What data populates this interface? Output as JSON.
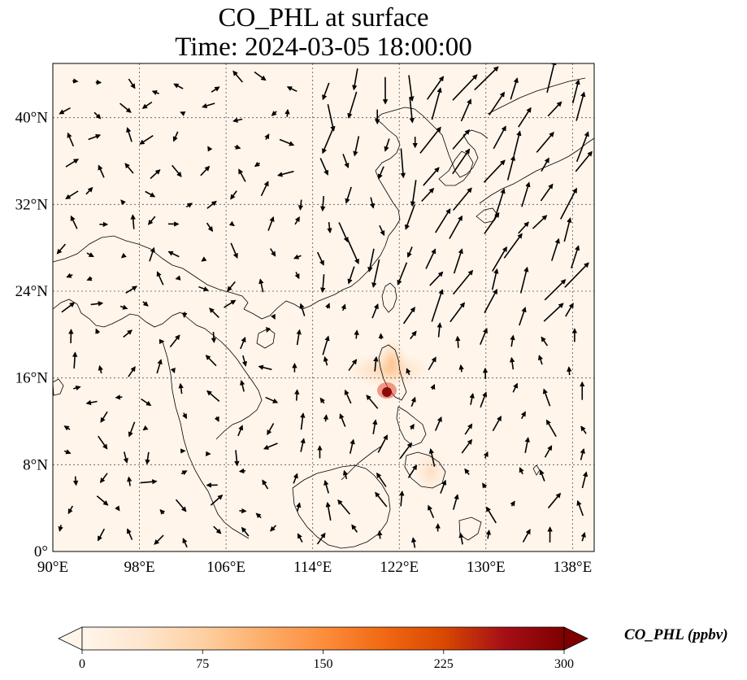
{
  "title": {
    "line1": "CO_PHL at surface",
    "line2": "Time: 2024-03-05 18:00:00"
  },
  "map": {
    "lon_range": [
      90,
      140
    ],
    "lat_range": [
      0,
      45
    ],
    "lon_ticks": [
      {
        "value": 90,
        "label": "90°E"
      },
      {
        "value": 98,
        "label": "98°E"
      },
      {
        "value": 106,
        "label": "106°E"
      },
      {
        "value": 114,
        "label": "114°E"
      },
      {
        "value": 122,
        "label": "122°E"
      },
      {
        "value": 130,
        "label": "130°E"
      },
      {
        "value": 138,
        "label": "138°E"
      }
    ],
    "lat_ticks": [
      {
        "value": 0,
        "label": "0°"
      },
      {
        "value": 8,
        "label": "8°N"
      },
      {
        "value": 16,
        "label": "16°N"
      },
      {
        "value": 24,
        "label": "24°N"
      },
      {
        "value": 32,
        "label": "32°N"
      },
      {
        "value": 40,
        "label": "40°N"
      }
    ],
    "gridlines": true,
    "background_color": "#fff5eb",
    "coastline_color": "#000000",
    "hotspot": {
      "lon": 120.7,
      "lat": 14.6,
      "color": "#8c0a0a"
    }
  },
  "colorbar": {
    "label": "CO_PHL (ppbv)",
    "min": 0,
    "max": 300,
    "ticks": [
      {
        "value": 0,
        "label": "0"
      },
      {
        "value": 75,
        "label": "75"
      },
      {
        "value": 150,
        "label": "150"
      },
      {
        "value": 225,
        "label": "225"
      },
      {
        "value": 300,
        "label": "300"
      }
    ],
    "colors": [
      "#fff5eb",
      "#fee6ce",
      "#fdd0a2",
      "#fdae6b",
      "#fd8d3c",
      "#f16913",
      "#d94801",
      "#a50f15",
      "#7f0000"
    ]
  }
}
